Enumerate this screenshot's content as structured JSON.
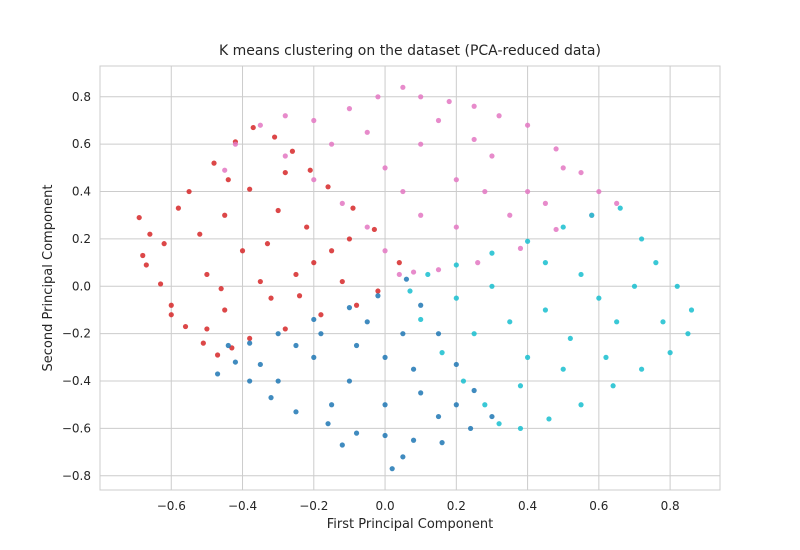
{
  "chart_data": {
    "type": "scatter",
    "title": "K means clustering on the dataset (PCA-reduced data)",
    "xlabel": "First Principal Component",
    "ylabel": "Second Principal Component",
    "xlim": [
      -0.8,
      0.94
    ],
    "ylim": [
      -0.86,
      0.93
    ],
    "xticks": [
      -0.6,
      -0.4,
      -0.2,
      0.0,
      0.2,
      0.4,
      0.6,
      0.8
    ],
    "xtick_labels": [
      "−0.6",
      "−0.4",
      "−0.2",
      "0.0",
      "0.2",
      "0.4",
      "0.6",
      "0.8"
    ],
    "yticks": [
      -0.8,
      -0.6,
      -0.4,
      -0.2,
      0.0,
      0.2,
      0.4,
      0.6,
      0.8
    ],
    "ytick_labels": [
      "−0.8",
      "−0.6",
      "−0.4",
      "−0.2",
      "0.0",
      "0.2",
      "0.4",
      "0.6",
      "0.8"
    ],
    "grid": true,
    "series": [
      {
        "color": "#d62728",
        "points": [
          [
            -0.69,
            0.29
          ],
          [
            -0.66,
            0.22
          ],
          [
            -0.62,
            0.18
          ],
          [
            -0.67,
            0.09
          ],
          [
            -0.63,
            0.01
          ],
          [
            -0.6,
            -0.08
          ],
          [
            -0.56,
            -0.17
          ],
          [
            -0.51,
            -0.24
          ],
          [
            -0.47,
            -0.29
          ],
          [
            -0.43,
            -0.26
          ],
          [
            -0.55,
            0.4
          ],
          [
            -0.48,
            0.52
          ],
          [
            -0.42,
            0.61
          ],
          [
            -0.37,
            0.67
          ],
          [
            -0.31,
            0.63
          ],
          [
            -0.26,
            0.57
          ],
          [
            -0.21,
            0.49
          ],
          [
            -0.16,
            0.42
          ],
          [
            -0.09,
            0.33
          ],
          [
            -0.03,
            0.24
          ],
          [
            0.04,
            0.1
          ],
          [
            -0.02,
            -0.02
          ],
          [
            -0.08,
            -0.08
          ],
          [
            -0.18,
            -0.12
          ],
          [
            -0.28,
            -0.18
          ],
          [
            -0.38,
            -0.22
          ],
          [
            -0.45,
            -0.1
          ],
          [
            -0.5,
            0.05
          ],
          [
            -0.52,
            0.22
          ],
          [
            -0.45,
            0.3
          ],
          [
            -0.38,
            0.41
          ],
          [
            -0.3,
            0.32
          ],
          [
            -0.22,
            0.25
          ],
          [
            -0.15,
            0.15
          ],
          [
            -0.25,
            0.05
          ],
          [
            -0.35,
            0.02
          ],
          [
            -0.4,
            0.15
          ],
          [
            -0.32,
            -0.05
          ],
          [
            -0.2,
            0.1
          ],
          [
            -0.12,
            0.02
          ],
          [
            -0.58,
            0.33
          ],
          [
            -0.6,
            -0.12
          ],
          [
            -0.68,
            0.13
          ],
          [
            -0.44,
            0.45
          ],
          [
            -0.28,
            0.48
          ],
          [
            -0.1,
            0.2
          ],
          [
            -0.5,
            -0.18
          ],
          [
            -0.33,
            0.18
          ],
          [
            -0.46,
            -0.01
          ],
          [
            -0.24,
            -0.04
          ]
        ]
      },
      {
        "color": "#e377c2",
        "points": [
          [
            -0.45,
            0.49
          ],
          [
            -0.42,
            0.6
          ],
          [
            -0.35,
            0.68
          ],
          [
            -0.28,
            0.72
          ],
          [
            -0.2,
            0.7
          ],
          [
            -0.1,
            0.75
          ],
          [
            -0.02,
            0.8
          ],
          [
            0.05,
            0.84
          ],
          [
            0.1,
            0.8
          ],
          [
            0.18,
            0.78
          ],
          [
            0.25,
            0.76
          ],
          [
            0.32,
            0.72
          ],
          [
            0.4,
            0.68
          ],
          [
            0.48,
            0.58
          ],
          [
            0.55,
            0.48
          ],
          [
            0.6,
            0.4
          ],
          [
            0.65,
            0.35
          ],
          [
            0.58,
            0.3
          ],
          [
            0.48,
            0.24
          ],
          [
            0.38,
            0.16
          ],
          [
            0.26,
            0.1
          ],
          [
            0.15,
            0.07
          ],
          [
            0.08,
            0.06
          ],
          [
            0.04,
            0.05
          ],
          [
            0.0,
            0.15
          ],
          [
            -0.05,
            0.25
          ],
          [
            -0.12,
            0.35
          ],
          [
            -0.2,
            0.45
          ],
          [
            -0.28,
            0.55
          ],
          [
            0.1,
            0.3
          ],
          [
            0.2,
            0.45
          ],
          [
            0.3,
            0.55
          ],
          [
            0.1,
            0.6
          ],
          [
            0.0,
            0.5
          ],
          [
            0.2,
            0.25
          ],
          [
            0.4,
            0.4
          ],
          [
            0.15,
            0.7
          ],
          [
            -0.15,
            0.6
          ],
          [
            0.35,
            0.3
          ],
          [
            0.5,
            0.5
          ],
          [
            0.05,
            0.4
          ],
          [
            0.25,
            0.62
          ],
          [
            -0.05,
            0.65
          ],
          [
            0.45,
            0.35
          ],
          [
            0.28,
            0.4
          ]
        ]
      },
      {
        "color": "#17becf",
        "points": [
          [
            0.12,
            0.05
          ],
          [
            0.2,
            0.09
          ],
          [
            0.3,
            0.14
          ],
          [
            0.4,
            0.19
          ],
          [
            0.5,
            0.25
          ],
          [
            0.58,
            0.3
          ],
          [
            0.66,
            0.33
          ],
          [
            0.72,
            0.2
          ],
          [
            0.76,
            0.1
          ],
          [
            0.82,
            0.0
          ],
          [
            0.86,
            -0.1
          ],
          [
            0.85,
            -0.2
          ],
          [
            0.8,
            -0.28
          ],
          [
            0.72,
            -0.35
          ],
          [
            0.64,
            -0.42
          ],
          [
            0.55,
            -0.5
          ],
          [
            0.46,
            -0.56
          ],
          [
            0.38,
            -0.6
          ],
          [
            0.32,
            -0.58
          ],
          [
            0.28,
            -0.5
          ],
          [
            0.22,
            -0.4
          ],
          [
            0.16,
            -0.28
          ],
          [
            0.1,
            -0.14
          ],
          [
            0.07,
            -0.02
          ],
          [
            0.3,
            0.0
          ],
          [
            0.45,
            -0.1
          ],
          [
            0.55,
            0.05
          ],
          [
            0.65,
            -0.15
          ],
          [
            0.4,
            -0.3
          ],
          [
            0.5,
            -0.35
          ],
          [
            0.35,
            -0.15
          ],
          [
            0.6,
            -0.05
          ],
          [
            0.7,
            0.0
          ],
          [
            0.25,
            -0.2
          ],
          [
            0.45,
            0.1
          ],
          [
            0.78,
            -0.15
          ],
          [
            0.52,
            -0.22
          ],
          [
            0.62,
            -0.3
          ],
          [
            0.38,
            -0.42
          ],
          [
            0.2,
            -0.05
          ]
        ]
      },
      {
        "color": "#1f77b4",
        "points": [
          [
            -0.44,
            -0.25
          ],
          [
            -0.42,
            -0.32
          ],
          [
            -0.38,
            -0.4
          ],
          [
            -0.32,
            -0.47
          ],
          [
            -0.25,
            -0.53
          ],
          [
            -0.16,
            -0.58
          ],
          [
            -0.08,
            -0.62
          ],
          [
            0.0,
            -0.63
          ],
          [
            0.08,
            -0.65
          ],
          [
            0.16,
            -0.66
          ],
          [
            0.24,
            -0.6
          ],
          [
            0.3,
            -0.55
          ],
          [
            0.25,
            -0.44
          ],
          [
            0.2,
            -0.33
          ],
          [
            0.15,
            -0.2
          ],
          [
            0.1,
            -0.08
          ],
          [
            0.06,
            0.03
          ],
          [
            -0.02,
            -0.04
          ],
          [
            -0.1,
            -0.09
          ],
          [
            -0.2,
            -0.14
          ],
          [
            -0.3,
            -0.2
          ],
          [
            -0.38,
            -0.24
          ],
          [
            0.02,
            -0.77
          ],
          [
            0.05,
            -0.72
          ],
          [
            -0.3,
            -0.4
          ],
          [
            -0.2,
            -0.3
          ],
          [
            -0.1,
            -0.4
          ],
          [
            0.0,
            -0.3
          ],
          [
            0.1,
            -0.45
          ],
          [
            0.05,
            -0.2
          ],
          [
            -0.05,
            -0.15
          ],
          [
            -0.15,
            -0.5
          ],
          [
            -0.25,
            -0.25
          ],
          [
            0.15,
            -0.55
          ],
          [
            0.0,
            -0.5
          ],
          [
            -0.35,
            -0.33
          ],
          [
            0.2,
            -0.5
          ],
          [
            -0.08,
            -0.25
          ],
          [
            0.08,
            -0.35
          ],
          [
            -0.18,
            -0.2
          ],
          [
            -0.47,
            -0.37
          ],
          [
            -0.12,
            -0.67
          ]
        ]
      }
    ]
  }
}
